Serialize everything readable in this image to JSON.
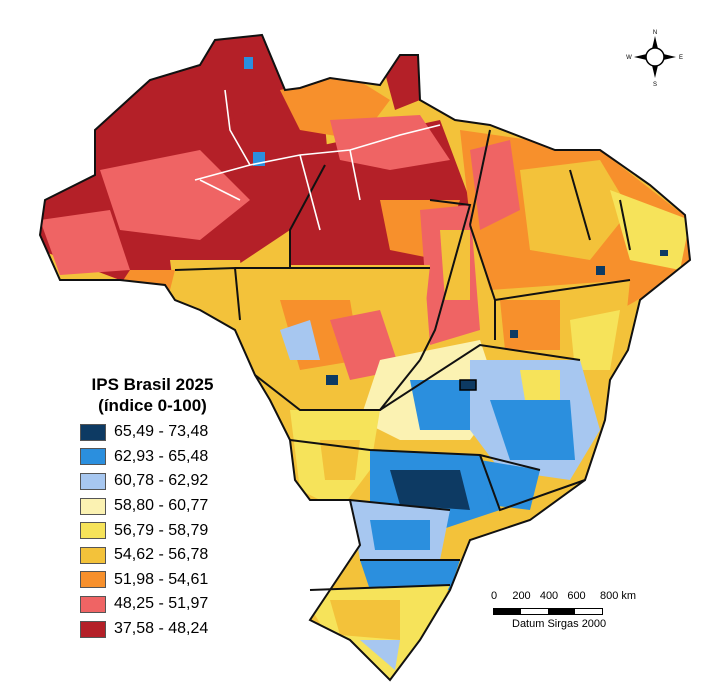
{
  "legend": {
    "title_line1": "IPS Brasil 2025",
    "title_line2": "(índice 0-100)",
    "classes": [
      {
        "range": "65,49 - 73,48",
        "color": "#0d3a63"
      },
      {
        "range": "62,93 - 65,48",
        "color": "#2b8fde"
      },
      {
        "range": "60,78 - 62,92",
        "color": "#a7c7f0"
      },
      {
        "range": "58,80 - 60,77",
        "color": "#fbf2b2"
      },
      {
        "range": "56,79 - 58,79",
        "color": "#f6e35a"
      },
      {
        "range": "54,62 - 56,78",
        "color": "#f3c23a"
      },
      {
        "range": "51,98 - 54,61",
        "color": "#f7902c"
      },
      {
        "range": "48,25 - 51,97",
        "color": "#ef6464"
      },
      {
        "range": "37,58 - 48,24",
        "color": "#b42028"
      }
    ]
  },
  "scale": {
    "labels": [
      "0",
      "200",
      "400",
      "600",
      "800 km"
    ],
    "datum": "Datum Sirgas 2000"
  },
  "compass": {
    "n": "N",
    "s": "S",
    "e": "E",
    "w": "W"
  }
}
